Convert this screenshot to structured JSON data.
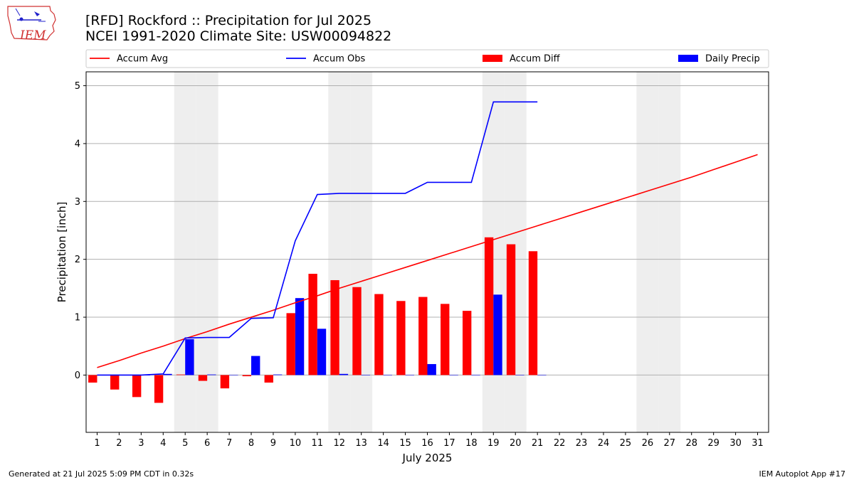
{
  "header": {
    "title_line1": "[RFD] Rockford :: Precipitation for Jul 2025",
    "title_line2": "NCEI 1991-2020 Climate Site: USW00094822",
    "logo_text": "IEM"
  },
  "footer": {
    "left": "Generated at 21 Jul 2025 5:09 PM CDT in 0.32s",
    "right": "IEM Autoplot App #17"
  },
  "colors": {
    "avg": "#ff0000",
    "obs": "#0000ff",
    "diff": "#ff0000",
    "daily": "#0000ff",
    "weekend": "#eeeeee",
    "grid": "#b0b0b0"
  },
  "chart_data": {
    "type": "bar",
    "xlabel": "July 2025",
    "ylabel": "Precipitation [inch]",
    "xlim": [
      0.5,
      31.5
    ],
    "ylim": [
      -0.99,
      5.24
    ],
    "yticks": [
      0,
      1,
      2,
      3,
      4,
      5
    ],
    "grid": "horizontal",
    "legend_placement": "top",
    "days": [
      1,
      2,
      3,
      4,
      5,
      6,
      7,
      8,
      9,
      10,
      11,
      12,
      13,
      14,
      15,
      16,
      17,
      18,
      19,
      20,
      21,
      22,
      23,
      24,
      25,
      26,
      27,
      28,
      29,
      30,
      31
    ],
    "weekend_days": [
      5,
      6,
      12,
      13,
      19,
      20,
      26,
      27
    ],
    "series": [
      {
        "name": "Accum Avg",
        "kind": "line",
        "values": [
          0.13,
          0.25,
          0.38,
          0.5,
          0.63,
          0.75,
          0.88,
          1.0,
          1.12,
          1.25,
          1.37,
          1.5,
          1.62,
          1.74,
          1.86,
          1.98,
          2.1,
          2.22,
          2.34,
          2.46,
          2.58,
          2.7,
          2.82,
          2.94,
          3.06,
          3.18,
          3.3,
          3.42,
          3.55,
          3.68,
          3.81
        ]
      },
      {
        "name": "Accum Obs",
        "kind": "line",
        "values": [
          0.0,
          0.0,
          0.0,
          0.02,
          0.64,
          0.65,
          0.65,
          0.98,
          0.99,
          2.32,
          3.12,
          3.14,
          3.14,
          3.14,
          3.14,
          3.33,
          3.33,
          3.33,
          4.72,
          4.72,
          4.72
        ]
      },
      {
        "name": "Accum Diff",
        "kind": "bar",
        "values": [
          -0.13,
          -0.25,
          -0.38,
          -0.48,
          0.01,
          -0.1,
          -0.23,
          -0.02,
          -0.13,
          1.07,
          1.75,
          1.64,
          1.52,
          1.4,
          1.28,
          1.35,
          1.23,
          1.11,
          2.38,
          2.26,
          2.14
        ]
      },
      {
        "name": "Daily Precip",
        "kind": "bar",
        "values": [
          0.0,
          0.0,
          0.0,
          0.02,
          0.62,
          0.01,
          0.0,
          0.33,
          0.01,
          1.33,
          0.8,
          0.02,
          0.0,
          0.0,
          0.0,
          0.19,
          0.0,
          0.0,
          1.39,
          0.0,
          0.0
        ]
      }
    ]
  }
}
